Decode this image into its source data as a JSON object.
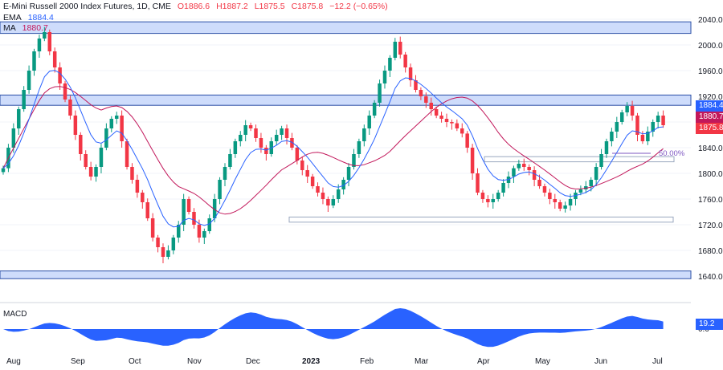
{
  "header": {
    "symbol": "E-Mini Russell 2000 Index Futures, 1D, CME",
    "open": "O1886.6",
    "high": "H1887.2",
    "low": "L1875.5",
    "close": "C1875.8",
    "change": "−12.2 (−0.65%)",
    "ema_label": "EMA",
    "ema_value": "1884.4",
    "ma_label": "MA",
    "ma_value": "1880.7"
  },
  "price_axis": {
    "ticks": [
      "2040.0",
      "2000.0",
      "1960.0",
      "1920.0",
      "1880.0",
      "1840.0",
      "1800.0",
      "1760.0",
      "1720.0",
      "1680.0",
      "1640.0"
    ],
    "tags": [
      {
        "label": "1884.4",
        "color": "#2962ff"
      },
      {
        "label": "1880.7",
        "color": "#c2185b"
      },
      {
        "label": "1875.8",
        "color": "#f23645"
      }
    ]
  },
  "time_axis": [
    "Aug",
    "Sep",
    "Oct",
    "Nov",
    "Dec",
    "2023",
    "Feb",
    "Mar",
    "Apr",
    "May",
    "Jun",
    "Jul"
  ],
  "fib_label": "50.00%",
  "macd": {
    "label": "MACD",
    "value": "19.2",
    "zero_tick": "0.0"
  },
  "colors": {
    "up": "#089981",
    "down": "#f23645",
    "ema": "#2962ff",
    "ma": "#c2185b",
    "zone": "#c9d8fb",
    "macd": "#2962ff"
  },
  "chart_data": {
    "type": "candlestick",
    "price_range": [
      1620,
      2060
    ],
    "zones": [
      {
        "top": 2036,
        "bottom": 2018
      },
      {
        "top": 1922,
        "bottom": 1906
      },
      {
        "top": 1648,
        "bottom": 1636
      }
    ],
    "ranges": [
      {
        "top": 1826,
        "bottom": 1818
      },
      {
        "top": 1732,
        "bottom": 1724
      }
    ],
    "series_close": [
      1808,
      1840,
      1870,
      1900,
      1930,
      1960,
      1990,
      2010,
      2020,
      1990,
      1965,
      1940,
      1915,
      1890,
      1860,
      1830,
      1810,
      1795,
      1810,
      1840,
      1870,
      1885,
      1890,
      1850,
      1810,
      1790,
      1770,
      1755,
      1730,
      1700,
      1685,
      1670,
      1680,
      1700,
      1720,
      1760,
      1740,
      1720,
      1700,
      1710,
      1730,
      1760,
      1790,
      1810,
      1830,
      1850,
      1860,
      1875,
      1870,
      1855,
      1840,
      1830,
      1850,
      1860,
      1870,
      1855,
      1840,
      1820,
      1805,
      1795,
      1780,
      1770,
      1760,
      1750,
      1760,
      1775,
      1790,
      1810,
      1830,
      1850,
      1870,
      1890,
      1910,
      1940,
      1960,
      1980,
      2005,
      1985,
      1965,
      1945,
      1930,
      1920,
      1910,
      1900,
      1890,
      1885,
      1880,
      1878,
      1870,
      1862,
      1840,
      1800,
      1770,
      1760,
      1755,
      1760,
      1770,
      1785,
      1795,
      1808,
      1815,
      1810,
      1805,
      1790,
      1780,
      1770,
      1760,
      1755,
      1745,
      1750,
      1760,
      1770,
      1775,
      1780,
      1790,
      1810,
      1830,
      1850,
      1865,
      1880,
      1895,
      1905,
      1890,
      1860,
      1850,
      1865,
      1880,
      1890,
      1875
    ]
  }
}
